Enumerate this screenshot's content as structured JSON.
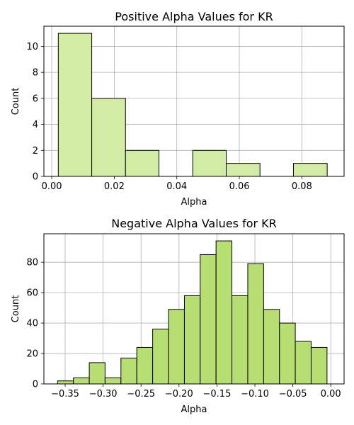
{
  "chart_data": [
    {
      "type": "bar",
      "title": "Positive Alpha Values for KR",
      "xlabel": "Alpha",
      "ylabel": "Count",
      "xlim": [
        -0.0025,
        0.0935
      ],
      "ylim": [
        0,
        11.55
      ],
      "bin_edges": [
        0.0021,
        0.0128,
        0.0236,
        0.0343,
        0.0451,
        0.0558,
        0.0666,
        0.0773,
        0.0881
      ],
      "counts": [
        11,
        6,
        2,
        0,
        2,
        1,
        0,
        1
      ],
      "xticks": [
        0.0,
        0.02,
        0.04,
        0.06,
        0.08
      ],
      "xtick_labels": [
        "0.00",
        "0.02",
        "0.04",
        "0.06",
        "0.08"
      ],
      "yticks": [
        0,
        2,
        4,
        6,
        8,
        10
      ],
      "ytick_labels": [
        "0",
        "2",
        "4",
        "6",
        "8",
        "10"
      ],
      "grid": true,
      "bar_color": "#d2eba5",
      "edge_color": "#000000"
    },
    {
      "type": "bar",
      "title": "Negative Alpha Values for KR",
      "xlabel": "Alpha",
      "ylabel": "Count",
      "xlim": [
        -0.378,
        0.0175
      ],
      "ylim": [
        0,
        98.7
      ],
      "bin_edges": [
        -0.36,
        -0.3391,
        -0.3182,
        -0.2974,
        -0.2765,
        -0.2556,
        -0.2347,
        -0.2138,
        -0.1929,
        -0.1721,
        -0.1512,
        -0.1303,
        -0.1094,
        -0.0885,
        -0.0676,
        -0.0468,
        -0.0259,
        -0.005
      ],
      "counts": [
        2,
        4,
        14,
        4,
        17,
        24,
        36,
        49,
        58,
        85,
        94,
        58,
        79,
        49,
        40,
        28,
        24
      ],
      "xticks": [
        -0.35,
        -0.3,
        -0.25,
        -0.2,
        -0.15,
        -0.1,
        -0.05,
        0.0
      ],
      "xtick_labels": [
        "−0.35",
        "−0.30",
        "−0.25",
        "−0.20",
        "−0.15",
        "−0.10",
        "−0.05",
        "0.00"
      ],
      "yticks": [
        0,
        20,
        40,
        60,
        80
      ],
      "ytick_labels": [
        "0",
        "20",
        "40",
        "60",
        "80"
      ],
      "grid": true,
      "bar_color": "#b7de72",
      "edge_color": "#000000"
    }
  ]
}
